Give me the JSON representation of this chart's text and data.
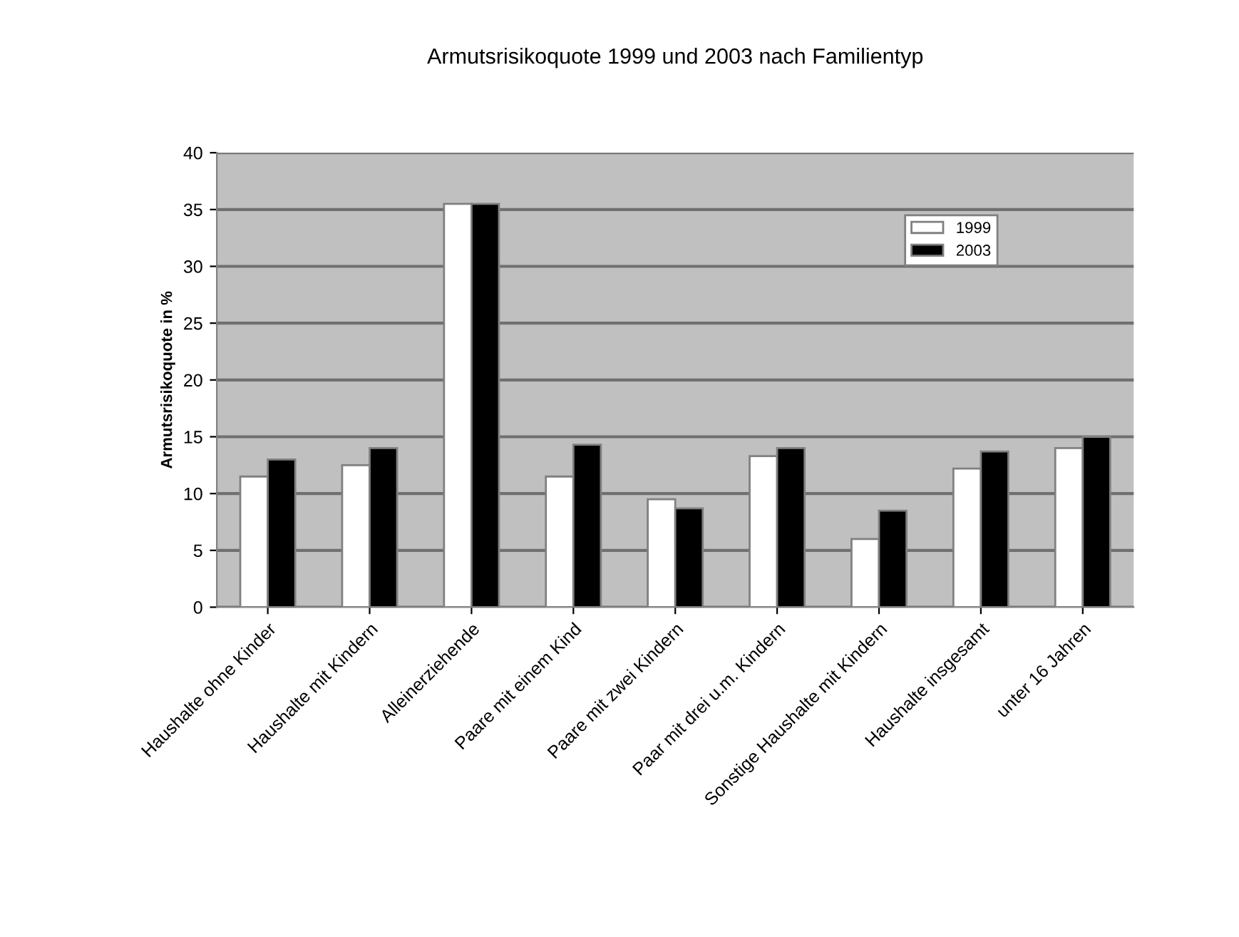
{
  "chart_data": {
    "type": "bar",
    "title": "Armutsrisikoquote 1999 und 2003 nach Familientyp",
    "ylabel": "Armutsrisikoquote in %",
    "categories": [
      "Haushalte ohne Kinder",
      "Haushalte mit Kindern",
      "Alleinerziehende",
      "Paare mit einem Kind",
      "Paare mit zwei Kindern",
      "Paar mit drei u.m. Kindern",
      "Sonstige Haushalte mit Kindern",
      "Haushalte insgesamt",
      "unter 16 Jahren"
    ],
    "series": [
      {
        "name": "1999",
        "color": "#ffffff",
        "values": [
          11.5,
          12.5,
          35.5,
          11.5,
          9.5,
          13.3,
          6,
          12.2,
          14
        ]
      },
      {
        "name": "2003",
        "color": "#000000",
        "values": [
          13,
          14,
          35.5,
          14.3,
          8.7,
          14,
          8.5,
          13.7,
          15
        ]
      }
    ],
    "ylim": [
      0,
      40
    ],
    "yticks": [
      0,
      5,
      10,
      15,
      20,
      25,
      30,
      35,
      40
    ],
    "grid": "y",
    "legend": "top right"
  }
}
